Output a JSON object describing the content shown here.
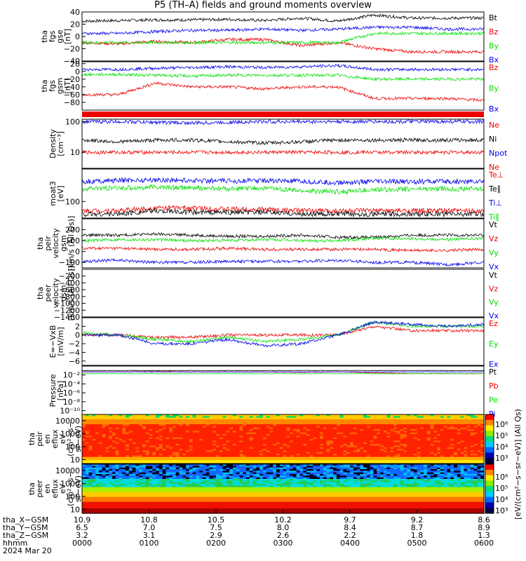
{
  "title": "P5 (TH–A) fields and ground moments overview",
  "colors": {
    "black": "#000000",
    "red": "#ee0000",
    "green": "#00e000",
    "blue": "#0000ee"
  },
  "chart_data": [
    {
      "type": "line",
      "panel": "fgs_gse",
      "ylabel": [
        "tha",
        "fgs",
        "gse",
        "[nT]"
      ],
      "ylim": [
        -40,
        40
      ],
      "yticks": [
        "40",
        "20",
        "0",
        "−20",
        "−40"
      ],
      "ytick_values": [
        40,
        20,
        0,
        -20,
        -40
      ],
      "series": [
        {
          "name": "Bt",
          "color": "black",
          "values": [
            25,
            26,
            27,
            27,
            28,
            26,
            30,
            25,
            35,
            30,
            30,
            30
          ]
        },
        {
          "name": "Bz",
          "color": "red",
          "values": [
            -10,
            -12,
            -8,
            -10,
            -5,
            -5,
            -15,
            -10,
            -20,
            -25,
            -25,
            -25
          ]
        },
        {
          "name": "By",
          "color": "green",
          "values": [
            -10,
            -10,
            -10,
            -10,
            -10,
            -10,
            -10,
            -10,
            5,
            5,
            5,
            5
          ]
        },
        {
          "name": "Bx",
          "color": "blue",
          "values": [
            5,
            5,
            8,
            10,
            10,
            12,
            10,
            12,
            15,
            15,
            12,
            12
          ]
        }
      ]
    },
    {
      "type": "line",
      "panel": "fgs_gsm",
      "ylabel": [
        "tha",
        "fgs",
        "gsm",
        "[nT]"
      ],
      "ylim": [
        -100,
        25
      ],
      "yticks": [
        "20",
        "0",
        "−20",
        "−40",
        "−60",
        "−80"
      ],
      "ytick_values": [
        20,
        0,
        -20,
        -40,
        -60,
        -80
      ],
      "series": [
        {
          "name": "Bz",
          "color": "red",
          "values": [
            -60,
            -60,
            -30,
            -40,
            -40,
            -45,
            -40,
            -40,
            -70,
            -70,
            -70,
            -75
          ]
        },
        {
          "name": "By",
          "color": "green",
          "values": [
            -8,
            -8,
            -10,
            -12,
            -10,
            -10,
            -10,
            -10,
            -20,
            -20,
            -20,
            -20
          ]
        },
        {
          "name": "Bx",
          "color": "blue",
          "values": [
            5,
            5,
            8,
            10,
            12,
            10,
            12,
            15,
            5,
            5,
            5,
            5
          ]
        }
      ]
    },
    {
      "type": "line",
      "panel": "density",
      "ylabel": [
        "Density",
        "[cm⁻³]"
      ],
      "scale": "log",
      "ylim": [
        3,
        120
      ],
      "yticks": [
        "100",
        "10"
      ],
      "ytick_values": [
        100,
        10
      ],
      "series": [
        {
          "name": "Ne",
          "color": "red",
          "values": null
        },
        {
          "name": "Ni",
          "color": "black",
          "values": [
            25,
            22,
            25,
            25,
            22,
            20,
            22,
            25,
            25,
            25,
            25,
            25
          ]
        },
        {
          "name": "Npot",
          "color": "blue",
          "values": [
            100,
            100,
            95,
            90,
            95,
            100,
            100,
            100,
            100,
            100,
            100,
            100
          ]
        },
        {
          "name": "Ne",
          "color": "red",
          "values": [
            10,
            10,
            10,
            10,
            10,
            10,
            10,
            10,
            10,
            10,
            10,
            10
          ]
        }
      ]
    },
    {
      "type": "line",
      "panel": "temperature",
      "ylabel": [
        "moat3",
        "[eV]"
      ],
      "scale": "log",
      "ylim": [
        40,
        600
      ],
      "yticks": [
        "100"
      ],
      "ytick_values": [
        100
      ],
      "series": [
        {
          "name": "Te⊥",
          "color": "red",
          "values": [
            60,
            60,
            70,
            70,
            65,
            65,
            60,
            60,
            60,
            60,
            60,
            60
          ]
        },
        {
          "name": "Te∥",
          "color": "black",
          "values": [
            50,
            50,
            60,
            55,
            55,
            55,
            50,
            50,
            50,
            50,
            50,
            50
          ]
        },
        {
          "name": "Ti⊥",
          "color": "blue",
          "values": [
            300,
            320,
            330,
            320,
            310,
            320,
            300,
            280,
            300,
            300,
            300,
            300
          ]
        },
        {
          "name": "Ti∥",
          "color": "green",
          "values": [
            200,
            210,
            220,
            210,
            200,
            210,
            180,
            170,
            190,
            200,
            200,
            200
          ]
        }
      ]
    },
    {
      "type": "line",
      "panel": "peir_velocity",
      "ylabel": [
        "tha",
        "peir",
        "velocity",
        "gsm",
        "[km/s (All Qs)]"
      ],
      "ylim": [
        -150,
        300
      ],
      "yticks": [
        "200",
        "100",
        "0",
        "−100"
      ],
      "ytick_values": [
        200,
        100,
        0,
        -100
      ],
      "series": [
        {
          "name": "Vt",
          "color": "black",
          "values": [
            150,
            150,
            160,
            150,
            140,
            140,
            150,
            130,
            130,
            150,
            150,
            150
          ]
        },
        {
          "name": "Vz",
          "color": "red",
          "values": [
            30,
            30,
            20,
            20,
            30,
            20,
            20,
            20,
            20,
            10,
            10,
            20
          ]
        },
        {
          "name": "Vy",
          "color": "green",
          "values": [
            100,
            110,
            110,
            100,
            100,
            110,
            100,
            100,
            120,
            120,
            110,
            120
          ]
        },
        {
          "name": "Vx",
          "color": "blue",
          "values": [
            -90,
            -80,
            -100,
            -100,
            -90,
            -90,
            -90,
            -80,
            -100,
            -100,
            -120,
            -100
          ]
        }
      ]
    },
    {
      "type": "line",
      "panel": "peer_velocity",
      "ylabel": [
        "tha",
        "peer",
        "velocity",
        "gsm",
        "[km/s (All Qs)]"
      ],
      "ylim": [
        -1400,
        0
      ],
      "yticks": [
        "−200",
        "−400",
        "−600",
        "−800",
        "−1000",
        "−1200",
        "−1400"
      ],
      "ytick_values": [
        -200,
        -400,
        -600,
        -800,
        -1000,
        -1200,
        -1400
      ],
      "series": [
        {
          "name": "Vt",
          "color": "black",
          "values": null
        },
        {
          "name": "Vz",
          "color": "red",
          "values": null
        },
        {
          "name": "Vy",
          "color": "green",
          "values": null
        },
        {
          "name": "Vx",
          "color": "blue",
          "values": null
        }
      ]
    },
    {
      "type": "line",
      "panel": "efield",
      "ylabel": [
        "E=−VxB",
        "[mV/m]"
      ],
      "ylim": [
        -7,
        4
      ],
      "yticks": [
        "2",
        "0",
        "−2",
        "−4",
        "−6"
      ],
      "ytick_values": [
        2,
        0,
        -2,
        -4,
        -6
      ],
      "series": [
        {
          "name": "Ez",
          "color": "red",
          "values": [
            0,
            0,
            -0.5,
            -0.5,
            0,
            0,
            0,
            0,
            2,
            1,
            1,
            1
          ]
        },
        {
          "name": "Ey",
          "color": "green",
          "values": [
            0.5,
            0,
            -1,
            -1.5,
            -0.5,
            -1.5,
            -1,
            0,
            3,
            2,
            2,
            2
          ]
        },
        {
          "name": "Ex",
          "color": "blue",
          "values": [
            0,
            0,
            -2,
            -2,
            -1,
            -2.5,
            -2,
            0,
            3,
            2.5,
            2,
            2.5
          ]
        }
      ]
    },
    {
      "type": "line",
      "panel": "pressure",
      "ylabel": [
        "Pressure",
        "[nPa]"
      ],
      "scale": "log",
      "ylim": [
        1e-11,
        1
      ],
      "yticks": [
        "10⁻²",
        "10⁻⁴",
        "10⁻⁶",
        "10⁻⁸",
        "10⁻¹⁰"
      ],
      "ytick_values": [
        -2,
        -4,
        -6,
        -8,
        -10
      ],
      "series": [
        {
          "name": "Pt",
          "color": "black",
          "values": [
            0.1,
            0.1,
            0.1,
            0.1,
            0.1,
            0.1,
            0.1,
            0.1,
            0.1,
            0.1,
            0.1,
            0.1
          ]
        },
        {
          "name": "Pb",
          "color": "red",
          "values": [
            0.05,
            0.05,
            0.06,
            0.05,
            0.05,
            0.05,
            0.04,
            0.05,
            0.03,
            0.02,
            0.02,
            0.02
          ]
        },
        {
          "name": "Pe",
          "color": "green",
          "values": [
            0.02,
            0.02,
            0.02,
            0.02,
            0.02,
            0.02,
            0.02,
            0.02,
            0.02,
            0.02,
            0.02,
            0.02
          ]
        },
        {
          "name": "Pi",
          "color": "blue",
          "values": [
            0.05,
            0.05,
            0.05,
            0.05,
            0.05,
            0.05,
            0.05,
            0.05,
            0.05,
            0.05,
            0.05,
            0.05
          ]
        }
      ]
    },
    {
      "type": "heatmap",
      "panel": "peir_eflux",
      "ylabel": [
        "tha",
        "peir",
        "en",
        "eflux",
        "eV",
        "(cm²−s−",
        "sr−eV)"
      ],
      "scale": "log",
      "ylim": [
        5,
        30000
      ],
      "yticks": [
        "10000",
        "1000",
        "100",
        "10"
      ],
      "ytick_values": [
        10000,
        1000,
        100,
        10
      ]
    },
    {
      "type": "heatmap",
      "panel": "peer_eflux",
      "ylabel": [
        "tha",
        "peer",
        "en",
        "eflux",
        "eV",
        "(cm²−s−",
        "sr−eV)"
      ],
      "scale": "log",
      "ylim": [
        5,
        30000
      ],
      "yticks": [
        "10000",
        "1000",
        "100",
        "10"
      ],
      "ytick_values": [
        10000,
        1000,
        100,
        10
      ]
    }
  ],
  "colorbar": {
    "label": "[eV/(cm²−s−sr−eV)] (All Qs)",
    "ticks_top": [
      "10⁶",
      "10⁵",
      "10⁴",
      "10³"
    ],
    "ticks_bottom": [
      "10⁶",
      "10⁵",
      "10⁴",
      "10³"
    ]
  },
  "xaxis": {
    "row_labels": [
      "tha_X−GSM",
      "tha_Y−GSM",
      "tha_Z−GSM",
      "hhmm",
      "2024 Mar 20"
    ],
    "columns": [
      [
        "10.9",
        "6.5",
        "3.2",
        "0000"
      ],
      [
        "10.8",
        "7.0",
        "3.1",
        "0100"
      ],
      [
        "10.5",
        "7.5",
        "2.9",
        "0200"
      ],
      [
        "10.2",
        "8.0",
        "2.6",
        "0300"
      ],
      [
        "9.7",
        "8.4",
        "2.2",
        "0400"
      ],
      [
        "9.2",
        "8.7",
        "1.8",
        "0500"
      ],
      [
        "8.6",
        "8.9",
        "1.3",
        "0600"
      ]
    ]
  }
}
